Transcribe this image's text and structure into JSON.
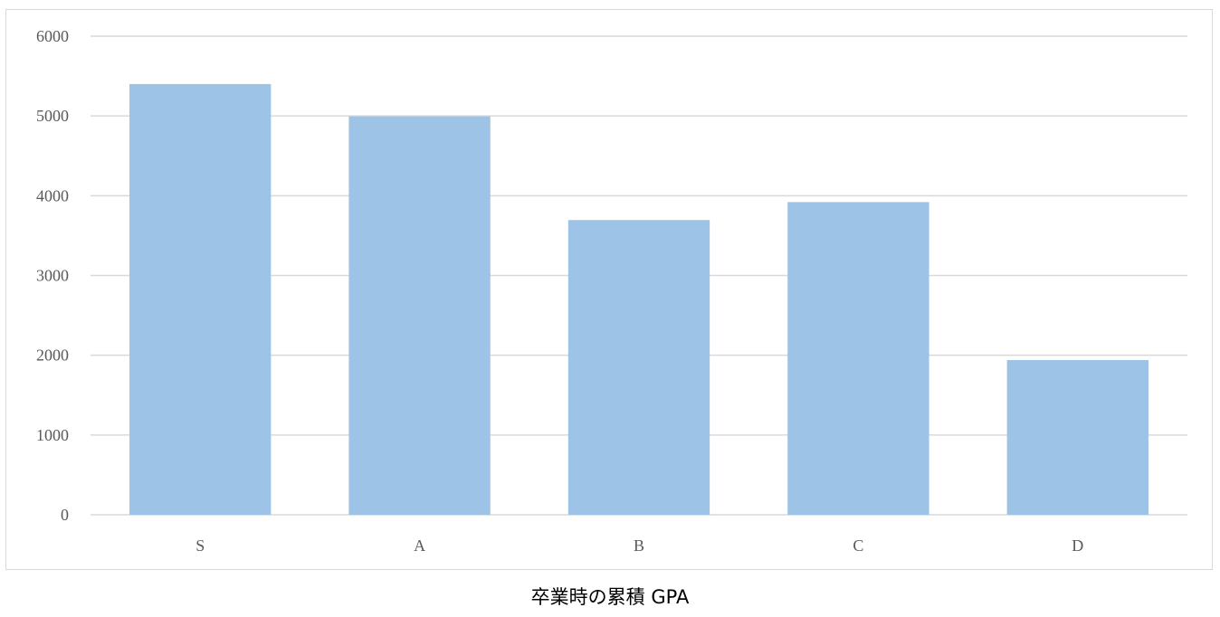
{
  "chart_data": {
    "type": "bar",
    "categories": [
      "S",
      "A",
      "B",
      "C",
      "D"
    ],
    "values": [
      5400,
      4995,
      3695,
      3920,
      1940
    ],
    "ylim": [
      0,
      6000
    ],
    "yticks": [
      0,
      1000,
      2000,
      3000,
      4000,
      5000,
      6000
    ],
    "grid": true,
    "legend": "none",
    "colors": {
      "bar": "#9dc3e6",
      "grid": "#d9d9d9",
      "tick_text": "#595959"
    }
  },
  "caption": "卒業時の累積 GPA"
}
